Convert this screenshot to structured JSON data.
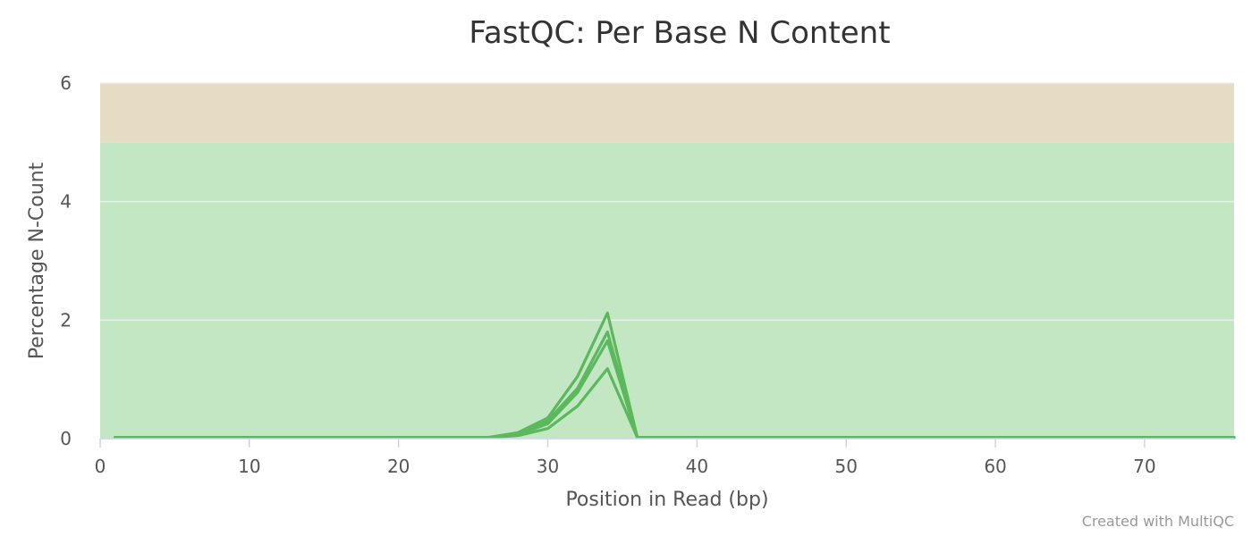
{
  "chart_data": {
    "type": "line",
    "title": "FastQC: Per Base N Content",
    "xlabel": "Position in Read (bp)",
    "ylabel": "Percentage N-Count",
    "credit": "Created with MultiQC",
    "xlim": [
      0,
      76
    ],
    "ylim": [
      0,
      6
    ],
    "x_ticks": [
      0,
      10,
      20,
      30,
      40,
      50,
      60,
      70
    ],
    "y_ticks": [
      0,
      2,
      4,
      6
    ],
    "grid": true,
    "legend": "none",
    "bands": [
      {
        "from": 0,
        "to": 5,
        "color": "#c3e6c3"
      },
      {
        "from": 5,
        "to": 6,
        "color": "#e6dcc3"
      }
    ],
    "series_color": "#5cb85c",
    "series": [
      {
        "x": [
          1,
          2,
          4,
          6,
          8,
          10,
          14,
          18,
          22,
          26,
          28,
          30,
          32,
          34,
          36,
          38,
          40,
          42,
          46,
          50,
          56,
          60,
          66,
          70,
          76
        ],
        "values": [
          0.02,
          0.02,
          0.02,
          0.02,
          0.02,
          0.02,
          0.02,
          0.02,
          0.02,
          0.02,
          0.1,
          0.35,
          1.05,
          2.12,
          0.02,
          0.02,
          0.02,
          0.02,
          0.02,
          0.02,
          0.02,
          0.02,
          0.02,
          0.02,
          0.02
        ]
      },
      {
        "x": [
          1,
          2,
          4,
          6,
          8,
          10,
          14,
          18,
          22,
          26,
          28,
          30,
          32,
          34,
          36,
          38,
          40,
          42,
          46,
          50,
          56,
          60,
          66,
          70,
          76
        ],
        "values": [
          0.02,
          0.02,
          0.02,
          0.02,
          0.02,
          0.02,
          0.02,
          0.02,
          0.02,
          0.02,
          0.08,
          0.3,
          0.85,
          1.8,
          0.02,
          0.02,
          0.02,
          0.02,
          0.02,
          0.02,
          0.02,
          0.02,
          0.02,
          0.02,
          0.02
        ]
      },
      {
        "x": [
          1,
          2,
          4,
          6,
          8,
          10,
          14,
          18,
          22,
          26,
          28,
          30,
          32,
          34,
          36,
          38,
          40,
          42,
          46,
          50,
          56,
          60,
          66,
          70,
          76
        ],
        "values": [
          0.02,
          0.02,
          0.02,
          0.02,
          0.02,
          0.02,
          0.02,
          0.02,
          0.02,
          0.02,
          0.07,
          0.25,
          0.78,
          1.65,
          0.02,
          0.02,
          0.02,
          0.02,
          0.02,
          0.02,
          0.02,
          0.02,
          0.02,
          0.02,
          0.02
        ]
      },
      {
        "x": [
          1,
          2,
          4,
          6,
          8,
          10,
          14,
          18,
          22,
          26,
          28,
          30,
          32,
          34,
          36,
          38,
          40,
          42,
          46,
          50,
          56,
          60,
          66,
          70,
          76
        ],
        "values": [
          0.02,
          0.02,
          0.02,
          0.02,
          0.02,
          0.02,
          0.02,
          0.02,
          0.02,
          0.02,
          0.05,
          0.17,
          0.55,
          1.18,
          0.02,
          0.02,
          0.02,
          0.02,
          0.02,
          0.02,
          0.02,
          0.02,
          0.02,
          0.02,
          0.02
        ]
      }
    ]
  }
}
